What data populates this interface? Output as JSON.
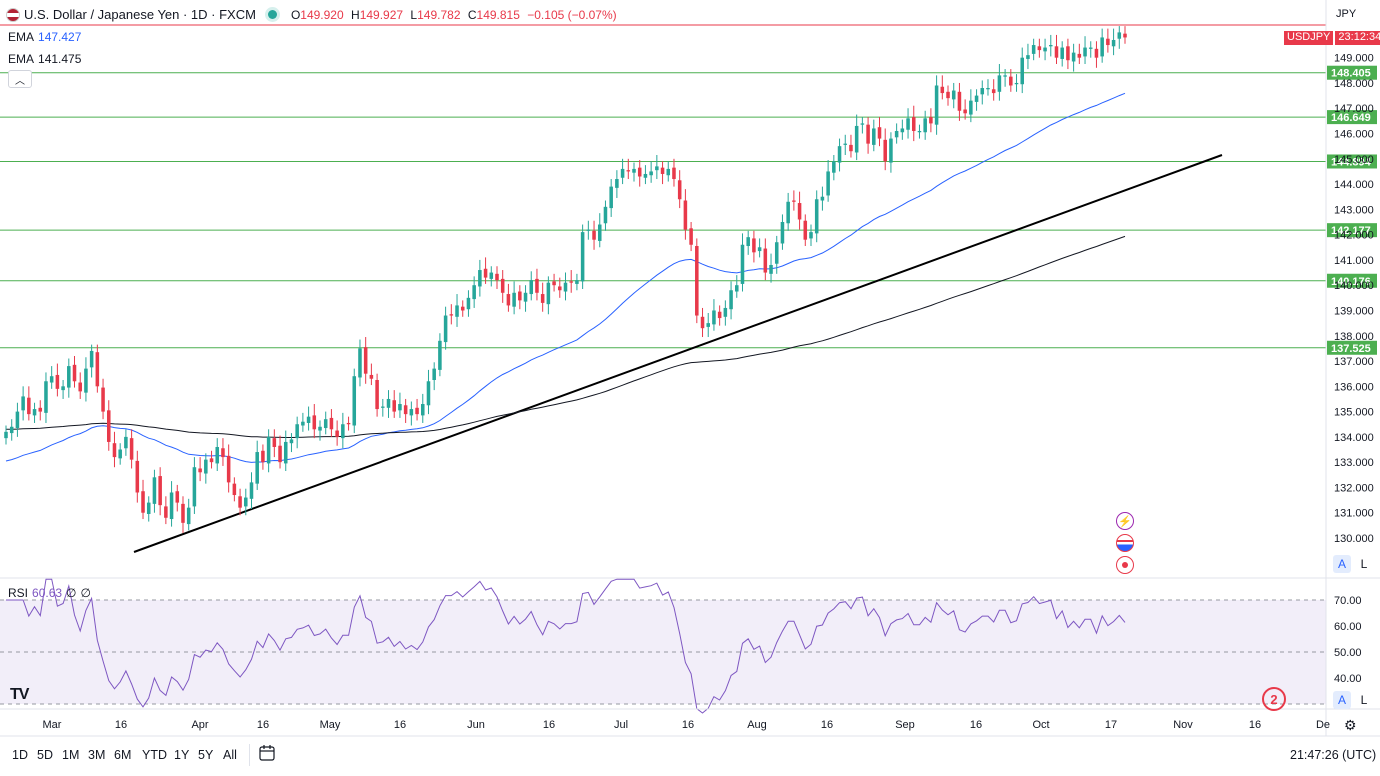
{
  "header": {
    "symbol_title": "U.S. Dollar / Japanese Yen · 1D · FXCM",
    "open_label": "O",
    "open": "149.920",
    "high_label": "H",
    "high": "149.927",
    "low_label": "L",
    "low": "149.782",
    "close_label": "C",
    "close": "149.815",
    "change": "−0.105 (−0.07%)"
  },
  "indicators": {
    "ema1_label": "EMA",
    "ema1_value": "147.427",
    "ema2_label": "EMA",
    "ema2_value": "141.475",
    "rsi_label": "RSI",
    "rsi_value": "60.63",
    "rsi_extra1": "∅",
    "rsi_extra2": "∅"
  },
  "currency": "JPY",
  "price_badge": {
    "symbol": "USDJPY",
    "countdown": "23:12:34"
  },
  "timeframes": [
    "1D",
    "5D",
    "1M",
    "3M",
    "6M",
    "YTD",
    "1Y",
    "5Y",
    "All"
  ],
  "clock": "21:47:26 (UTC)",
  "scale_buttons": {
    "auto": "A",
    "log": "L"
  },
  "alerts_count": "2",
  "logo_text": "TV",
  "colors": {
    "up": "#26a69a",
    "down": "#e8394a",
    "ema_fast": "#2962ff",
    "ema_slow": "#131722",
    "rsi": "#7e57c2",
    "level": "#4caf50",
    "badge": "#e8394a"
  },
  "chart_data": {
    "type": "candlestick",
    "title": "U.S. Dollar / Japanese Yen · 1D · FXCM",
    "price_axis_ticks": [
      "130.000",
      "131.000",
      "132.000",
      "133.000",
      "134.000",
      "135.000",
      "136.000",
      "137.000",
      "138.000",
      "139.000",
      "140.000",
      "141.000",
      "142.000",
      "143.000",
      "144.000",
      "145.000",
      "146.000",
      "147.000",
      "148.000",
      "149.000"
    ],
    "price_range": [
      129.1,
      151.1
    ],
    "x_axis_ticks": [
      "Mar",
      "16",
      "Apr",
      "16",
      "May",
      "16",
      "Jun",
      "16",
      "Jul",
      "16",
      "Aug",
      "16",
      "Sep",
      "16",
      "Oct",
      "17",
      "Nov",
      "16",
      "De"
    ],
    "horizontal_levels": [
      "148.405",
      "146.649",
      "144.894",
      "142.177",
      "140.176",
      "137.525"
    ],
    "current_price": "149.815",
    "candles_close": [
      134.2,
      134.4,
      135.0,
      135.6,
      134.9,
      135.1,
      135.0,
      136.2,
      136.4,
      135.9,
      136.0,
      136.8,
      136.2,
      135.8,
      136.7,
      137.4,
      136.0,
      135.0,
      133.8,
      133.2,
      133.5,
      134.0,
      133.1,
      131.8,
      131.0,
      131.4,
      132.4,
      131.3,
      130.8,
      131.8,
      131.4,
      130.6,
      131.2,
      132.8,
      132.6,
      133.1,
      133.0,
      133.6,
      133.2,
      132.2,
      131.7,
      131.2,
      131.6,
      132.2,
      133.4,
      133.0,
      134.0,
      133.6,
      133.0,
      133.8,
      133.9,
      134.5,
      134.6,
      134.8,
      134.3,
      134.4,
      134.7,
      134.3,
      134.0,
      134.5,
      134.5,
      136.4,
      137.5,
      136.5,
      136.3,
      135.1,
      135.2,
      135.5,
      135.0,
      135.3,
      134.9,
      135.1,
      134.9,
      135.3,
      136.2,
      136.7,
      137.8,
      138.8,
      138.8,
      139.2,
      139.0,
      139.5,
      140.0,
      140.6,
      140.3,
      140.5,
      140.2,
      139.7,
      139.2,
      139.7,
      139.4,
      139.7,
      140.2,
      139.7,
      139.3,
      140.1,
      140.0,
      139.8,
      140.1,
      140.1,
      140.2,
      142.1,
      142.2,
      141.8,
      142.4,
      143.1,
      143.9,
      144.2,
      144.6,
      144.5,
      144.6,
      144.3,
      144.4,
      144.5,
      144.7,
      144.4,
      144.6,
      144.2,
      143.4,
      142.2,
      141.6,
      138.8,
      138.3,
      138.5,
      139.0,
      138.7,
      139.1,
      139.8,
      140.0,
      141.6,
      141.9,
      141.3,
      141.5,
      140.5,
      140.8,
      141.7,
      142.5,
      143.3,
      143.3,
      142.6,
      141.8,
      142.1,
      143.4,
      143.5,
      144.5,
      144.9,
      145.5,
      145.6,
      145.3,
      146.3,
      146.4,
      145.6,
      146.2,
      145.8,
      144.9,
      145.8,
      146.1,
      146.2,
      146.6,
      146.1,
      146.1,
      146.6,
      146.4,
      147.9,
      147.6,
      147.4,
      147.7,
      146.9,
      146.8,
      147.3,
      147.5,
      147.8,
      147.8,
      147.6,
      148.3,
      148.3,
      147.9,
      148.0,
      149.0,
      149.1,
      149.5,
      149.3,
      149.4,
      149.5,
      149.0,
      149.4,
      148.9,
      149.2,
      149.0,
      149.4,
      149.4,
      149.0,
      149.8,
      149.5,
      149.7,
      150.0,
      149.8
    ]
  }
}
